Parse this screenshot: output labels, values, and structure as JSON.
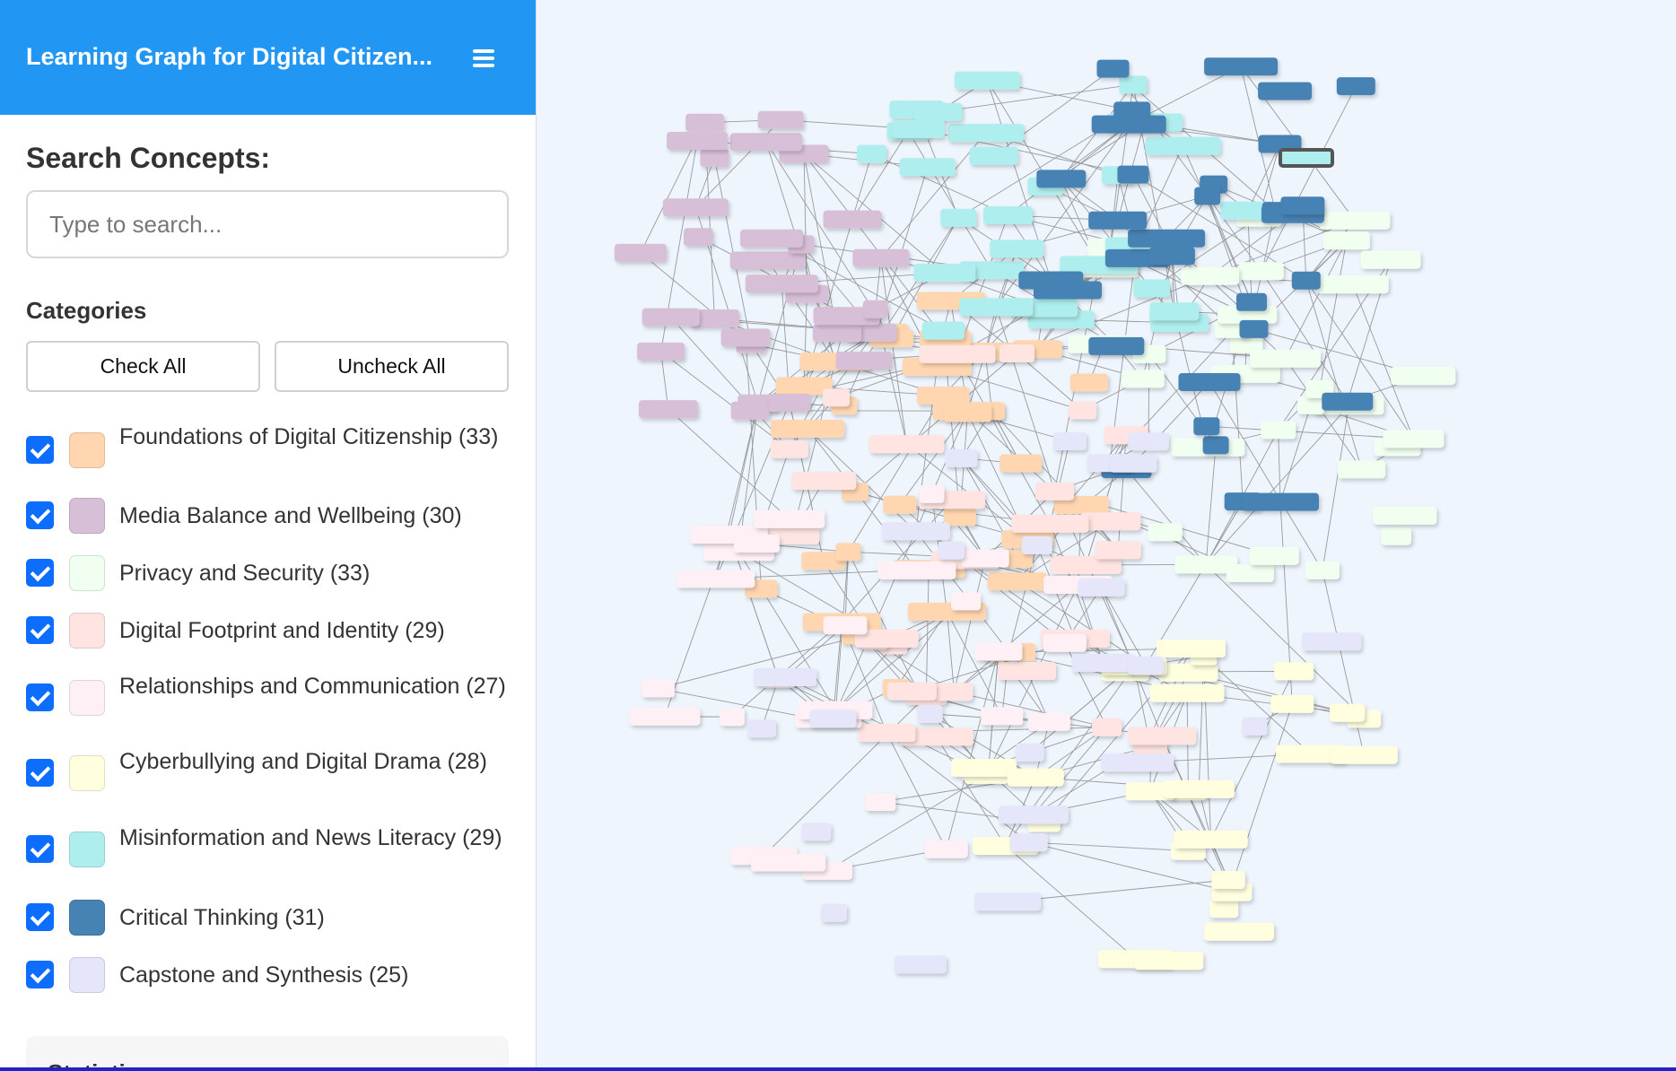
{
  "app": {
    "title": "Learning Graph for Digital Citizen...",
    "menu_icon": "hamburger-menu-icon"
  },
  "search": {
    "label": "Search Concepts:",
    "placeholder": "Type to search...",
    "value": ""
  },
  "categories": {
    "label": "Categories",
    "check_all_label": "Check All",
    "uncheck_all_label": "Uncheck All",
    "items": [
      {
        "name": "Foundations of Digital Citizenship",
        "count": 33,
        "label": "Foundations of Digital Citizenship (33)",
        "color": "#ffd6b0",
        "checked": true
      },
      {
        "name": "Media Balance and Wellbeing",
        "count": 30,
        "label": "Media Balance and Wellbeing (30)",
        "color": "#d8bfd8",
        "checked": true
      },
      {
        "name": "Privacy and Security",
        "count": 33,
        "label": "Privacy and Security (33)",
        "color": "#f0fff0",
        "checked": true
      },
      {
        "name": "Digital Footprint and Identity",
        "count": 29,
        "label": "Digital Footprint and Identity (29)",
        "color": "#ffe4e1",
        "checked": true
      },
      {
        "name": "Relationships and Communication",
        "count": 27,
        "label": "Relationships and Communication (27)",
        "color": "#fff0f5",
        "checked": true
      },
      {
        "name": "Cyberbullying and Digital Drama",
        "count": 28,
        "label": "Cyberbullying and Digital Drama (28)",
        "color": "#ffffe0",
        "checked": true
      },
      {
        "name": "Misinformation and News Literacy",
        "count": 29,
        "label": "Misinformation and News Literacy (29)",
        "color": "#afeeee",
        "checked": true
      },
      {
        "name": "Critical Thinking",
        "count": 31,
        "label": "Critical Thinking (31)",
        "color": "#4682b4",
        "checked": true
      },
      {
        "name": "Capstone and Synthesis",
        "count": 25,
        "label": "Capstone and Synthesis (25)",
        "color": "#e6e6fa",
        "checked": true
      }
    ]
  },
  "statistics": {
    "title": "Statistics"
  },
  "graph": {
    "background": "#eef5fd",
    "edge_color": "#9a9a9a",
    "selected_border": "#555555"
  }
}
